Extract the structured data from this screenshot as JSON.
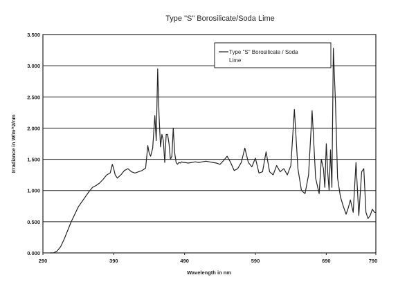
{
  "chart_data": {
    "type": "line",
    "title": "Type \"S\" Borosilicate/Soda Lime",
    "xlabel": "Wavelength in nm",
    "ylabel": "Irradiance in W/m^2/nm",
    "xlim": [
      290,
      760
    ],
    "ylim": [
      0,
      3.5
    ],
    "x_ticks": [
      290,
      390,
      490,
      590,
      690,
      790
    ],
    "x_tick_labels": [
      "290",
      "390",
      "490",
      "590",
      "690",
      "790"
    ],
    "y_ticks": [
      0,
      0.5,
      1.0,
      1.5,
      2.0,
      2.5,
      3.0,
      3.5
    ],
    "y_tick_labels": [
      "0.000",
      "0.500",
      "1.000",
      "1.500",
      "2.000",
      "2.500",
      "3.000",
      "3.500"
    ],
    "grid": "horizontal",
    "legend_position": "top-right",
    "legend_label": [
      "Type \"S\" Borosilicate / Soda",
      "Lime"
    ],
    "series": [
      {
        "name": "Type \"S\" Borosilicate / Soda Lime",
        "color": "#222222",
        "x": [
          300,
          305,
          310,
          315,
          320,
          325,
          330,
          335,
          340,
          345,
          350,
          355,
          360,
          365,
          370,
          375,
          380,
          385,
          388,
          390,
          392,
          395,
          400,
          405,
          410,
          415,
          420,
          425,
          430,
          435,
          438,
          440,
          442,
          445,
          448,
          450,
          452,
          454,
          456,
          458,
          460,
          462,
          464,
          466,
          468,
          470,
          472,
          474,
          476,
          478,
          480,
          482,
          484,
          486,
          488,
          490,
          495,
          500,
          505,
          510,
          515,
          520,
          525,
          530,
          535,
          540,
          545,
          550,
          555,
          560,
          565,
          570,
          575,
          580,
          585,
          590,
          595,
          600,
          605,
          610,
          615,
          620,
          625,
          630,
          635,
          640,
          645,
          650,
          655,
          660,
          665,
          670,
          675,
          680,
          683,
          686,
          688,
          690,
          692,
          694,
          696,
          698,
          700,
          703,
          706,
          710,
          714,
          718,
          721,
          724,
          728,
          732,
          736,
          740,
          743,
          746,
          749,
          752,
          755,
          758,
          760
        ],
        "y": [
          0.0,
          0.0,
          0.03,
          0.1,
          0.22,
          0.36,
          0.5,
          0.62,
          0.74,
          0.82,
          0.9,
          0.98,
          1.05,
          1.08,
          1.12,
          1.18,
          1.25,
          1.28,
          1.42,
          1.35,
          1.25,
          1.2,
          1.25,
          1.32,
          1.35,
          1.3,
          1.28,
          1.3,
          1.32,
          1.36,
          1.72,
          1.6,
          1.55,
          1.68,
          2.2,
          1.8,
          2.95,
          2.2,
          1.7,
          1.9,
          1.8,
          1.45,
          1.9,
          1.9,
          1.75,
          1.5,
          1.55,
          2.0,
          1.6,
          1.45,
          1.42,
          1.45,
          1.44,
          1.46,
          1.45,
          1.45,
          1.44,
          1.45,
          1.46,
          1.45,
          1.46,
          1.47,
          1.46,
          1.45,
          1.44,
          1.42,
          1.48,
          1.55,
          1.45,
          1.32,
          1.35,
          1.45,
          1.68,
          1.45,
          1.38,
          1.52,
          1.28,
          1.3,
          1.62,
          1.3,
          1.25,
          1.4,
          1.3,
          1.35,
          1.25,
          1.4,
          2.3,
          1.35,
          1.0,
          0.95,
          1.25,
          2.28,
          1.2,
          0.95,
          1.5,
          1.35,
          1.05,
          1.75,
          1.3,
          1.0,
          1.65,
          1.05,
          3.28,
          2.4,
          1.2,
          0.9,
          0.75,
          0.62,
          0.72,
          0.85,
          0.65,
          1.45,
          0.6,
          1.3,
          1.35,
          0.65,
          0.55,
          0.6,
          0.7,
          0.65,
          0.65
        ]
      }
    ]
  }
}
